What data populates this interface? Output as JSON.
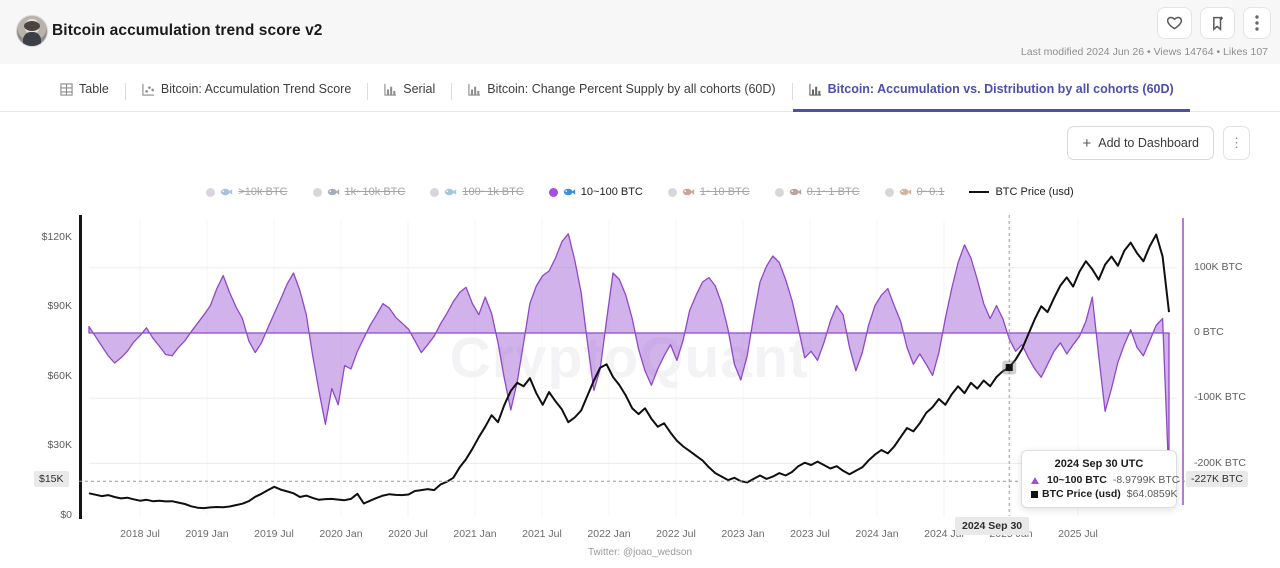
{
  "header": {
    "title": "Bitcoin accumulation trend score v2",
    "meta": "Last modified 2024 Jun 26 • Views 14764 • Likes 107",
    "icons": [
      "heart-icon",
      "bookmark-icon",
      "kebab-icon"
    ]
  },
  "tabs": [
    {
      "label": "Table",
      "icon": "table-icon",
      "active": false
    },
    {
      "label": "Bitcoin: Accumulation Trend Score",
      "icon": "scatter-icon",
      "active": false
    },
    {
      "label": "Serial",
      "icon": "bar-chart-icon",
      "active": false
    },
    {
      "label": "Bitcoin: Change Percent Supply by all cohorts (60D)",
      "icon": "bar-chart-icon",
      "active": false
    },
    {
      "label": "Bitcoin: Accumulation vs. Distribution by all cohorts (60D)",
      "icon": "bar-chart-icon",
      "active": true
    }
  ],
  "toolbar": {
    "add_to_dashboard": "Add to Dashboard",
    "plus": "+",
    "kebab": "⋮"
  },
  "legend": [
    {
      "emoji": "🐳",
      "label": ">10k BTC",
      "active": false,
      "icon_color": "#5b8ed6"
    },
    {
      "emoji": "🦈",
      "label": "1k~10k BTC",
      "active": false,
      "icon_color": "#5a6b8c"
    },
    {
      "emoji": "🐟",
      "label": "100~1k BTC",
      "active": false,
      "icon_color": "#4aa0c9"
    },
    {
      "emoji": "🐠",
      "label": "10~100 BTC",
      "active": true,
      "icon_color": "#3f8fd8"
    },
    {
      "emoji": "🦀",
      "label": "1~10 BTC",
      "active": false,
      "icon_color": "#b0583a"
    },
    {
      "emoji": "🐙",
      "label": "0.1~1 BTC",
      "active": false,
      "icon_color": "#8a5a4a"
    },
    {
      "emoji": "🦐",
      "label": "0~0.1",
      "active": false,
      "icon_color": "#b97844"
    }
  ],
  "legend_price_label": "BTC Price (usd)",
  "watermark": "CryptoQuant",
  "credit": "Twitter: @joao_wedson",
  "tooltip": {
    "title": "2024 Sep 30 UTC",
    "rows": [
      {
        "marker": "triangle",
        "marker_color": "#a04fd6",
        "emoji": "🐠",
        "label": "10~100 BTC",
        "value": "-8.9799K BTC"
      },
      {
        "marker": "square",
        "marker_color": "#111111",
        "label": "BTC Price (usd)",
        "value": "$64.0859K"
      }
    ]
  },
  "crosshair": {
    "x_index": 144,
    "date_badge": "2024 Sep 30",
    "left_badge": "$15K",
    "right_badge": "-227K BTC",
    "level_k_usd": 15,
    "level_k_btc": -227,
    "price_marker_value": 64.0859
  },
  "chart_data": {
    "type": "mixed",
    "title": "Bitcoin: Accumulation vs. Distribution by all cohorts (60D)",
    "x_labels": [
      "2018 Jul",
      "2019 Jan",
      "2019 Jul",
      "2020 Jan",
      "2020 Jul",
      "2021 Jan",
      "2021 Jul",
      "2022 Jan",
      "2022 Jul",
      "2023 Jan",
      "2023 Jul",
      "2024 Jan",
      "2024 Jul",
      "2025 Jan",
      "2025 Jul"
    ],
    "left_axis": {
      "unit": "USD",
      "ticks": [
        {
          "label": "$0",
          "value": 0
        },
        {
          "label": "$30K",
          "value": 30
        },
        {
          "label": "$60K",
          "value": 60
        },
        {
          "label": "$90K",
          "value": 90
        },
        {
          "label": "$120K",
          "value": 120
        }
      ],
      "range_k_usd": [
        0,
        130
      ]
    },
    "right_axis": {
      "unit": "BTC",
      "ticks": [
        {
          "label": "100K BTC",
          "value": 100
        },
        {
          "label": "0 BTC",
          "value": 0
        },
        {
          "label": "-100K BTC",
          "value": -100
        },
        {
          "label": "-200K BTC",
          "value": -200
        }
      ],
      "range_k_btc": [
        -240,
        180
      ]
    },
    "grid": true,
    "legend_position": "top-center",
    "series": [
      {
        "name": "10~100 BTC",
        "type": "area",
        "axis": "right",
        "unit": "K BTC",
        "stroke": "#8f49c6",
        "fill": "rgba(164,101,215,0.5)",
        "values": [
          10,
          -5,
          -20,
          -35,
          -46,
          -38,
          -28,
          -14,
          -4,
          8,
          -8,
          -20,
          -33,
          -35,
          -22,
          -12,
          2,
          15,
          28,
          42,
          68,
          88,
          62,
          40,
          22,
          -12,
          -30,
          -15,
          8,
          30,
          52,
          75,
          92,
          65,
          28,
          -35,
          -90,
          -140,
          -85,
          -110,
          -50,
          -55,
          -28,
          -8,
          12,
          28,
          45,
          38,
          24,
          15,
          6,
          -12,
          -30,
          -18,
          -5,
          14,
          30,
          48,
          62,
          70,
          45,
          28,
          55,
          30,
          -15,
          -70,
          -118,
          -75,
          -15,
          45,
          72,
          88,
          95,
          115,
          140,
          152,
          112,
          62,
          -15,
          -88,
          -55,
          20,
          92,
          82,
          58,
          22,
          -25,
          -58,
          -80,
          -55,
          -35,
          -18,
          -42,
          -10,
          35,
          58,
          78,
          85,
          72,
          45,
          5,
          -48,
          -72,
          -35,
          25,
          78,
          102,
          118,
          108,
          82,
          50,
          8,
          -38,
          -28,
          -42,
          -15,
          18,
          42,
          28,
          -22,
          -58,
          -30,
          12,
          42,
          58,
          68,
          42,
          18,
          -22,
          -48,
          -32,
          -48,
          -65,
          -30,
          22,
          68,
          108,
          135,
          115,
          82,
          45,
          22,
          42,
          22,
          -9,
          -28,
          -18,
          -38,
          -55,
          -68,
          -48,
          -28,
          -15,
          -32,
          -18,
          -5,
          18,
          55,
          -35,
          -120,
          -85,
          -45,
          -18,
          5,
          -22,
          -35,
          -12,
          12,
          22,
          -227
        ]
      },
      {
        "name": "BTC Price (usd)",
        "type": "line",
        "axis": "left",
        "unit": "K USD",
        "stroke": "#0f0f0f",
        "values": [
          9.8,
          9.2,
          8.6,
          9.0,
          8.2,
          7.6,
          7.9,
          7.2,
          6.6,
          7.0,
          6.4,
          6.6,
          6.3,
          6.4,
          5.8,
          5.2,
          4.2,
          3.6,
          3.4,
          3.7,
          3.9,
          3.8,
          4.1,
          4.7,
          5.3,
          6.4,
          8.3,
          9.6,
          11.2,
          12.6,
          11.4,
          10.6,
          9.8,
          8.2,
          8.8,
          7.8,
          7.0,
          7.3,
          7.4,
          7.1,
          6.8,
          7.4,
          9.6,
          5.4,
          6.6,
          7.8,
          8.8,
          9.4,
          9.1,
          9.0,
          9.3,
          10.8,
          11.2,
          11.6,
          11.2,
          13.6,
          14.8,
          16.5,
          21.0,
          24.5,
          29.0,
          34.0,
          38.5,
          43.5,
          40.5,
          48.0,
          54.0,
          57.5,
          56.0,
          59.5,
          53.0,
          48.0,
          53.5,
          49.5,
          46.0,
          40.5,
          42.5,
          45.5,
          52.0,
          58.5,
          64.0,
          65.5,
          60.0,
          56.5,
          52.0,
          46.5,
          44.0,
          46.5,
          42.0,
          38.5,
          40.0,
          36.0,
          32.5,
          30.0,
          28.0,
          26.0,
          24.0,
          21.0,
          18.5,
          17.0,
          15.5,
          16.5,
          15.0,
          14.5,
          16.0,
          17.5,
          16.0,
          17.0,
          18.5,
          17.5,
          19.0,
          21.5,
          23.0,
          22.0,
          23.5,
          22.0,
          20.5,
          21.5,
          19.5,
          18.0,
          19.5,
          21.0,
          24.0,
          26.5,
          28.5,
          27.0,
          30.0,
          34.0,
          38.0,
          36.5,
          40.0,
          44.5,
          47.0,
          50.5,
          48.0,
          52.5,
          56.0,
          53.0,
          57.5,
          55.0,
          58.5,
          56.0,
          60.0,
          62.5,
          64.1,
          67.5,
          72.0,
          78.5,
          85.0,
          90.5,
          88.0,
          94.0,
          99.5,
          103.0,
          99.0,
          105.5,
          110.0,
          106.5,
          102.0,
          108.5,
          112.0,
          108.0,
          114.5,
          118.0,
          113.5,
          110.0,
          116.5,
          121.5,
          112.0,
          88.0
        ]
      }
    ]
  }
}
